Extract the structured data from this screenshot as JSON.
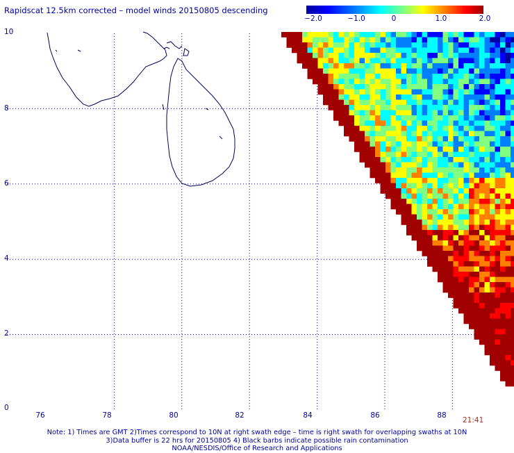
{
  "title": "Rapidscat 12.5km corrected – model winds 20150805 descending",
  "colorbar": {
    "labels": [
      "−2.0",
      "−1.0",
      "0",
      "1.0",
      "2.0"
    ],
    "min": -2.0,
    "max": 2.0,
    "colors": [
      "#0000a0",
      "#0000ff",
      "#0080ff",
      "#00ffff",
      "#80ff80",
      "#ffff00",
      "#ff8000",
      "#ff0000",
      "#a00000"
    ]
  },
  "axes": {
    "x_ticks": [
      "76",
      "78",
      "80",
      "82",
      "84",
      "86",
      "88"
    ],
    "y_ticks": [
      "10",
      "8",
      "6",
      "4",
      "2",
      "0"
    ],
    "lon_range": [
      75,
      90
    ],
    "lat_range": [
      0,
      10
    ]
  },
  "timestamp": "21:41",
  "notes": [
    "Note: 1) Times are GMT 2)Times correspond to 10N at right swath edge – time is right swath for overlapping swaths at 10N",
    "3)Data buffer is 22 hrs for 20150805 4) Black barbs indicate possible rain contamination",
    "NOAA/NESDIS/Office of Research and Applications"
  ]
}
